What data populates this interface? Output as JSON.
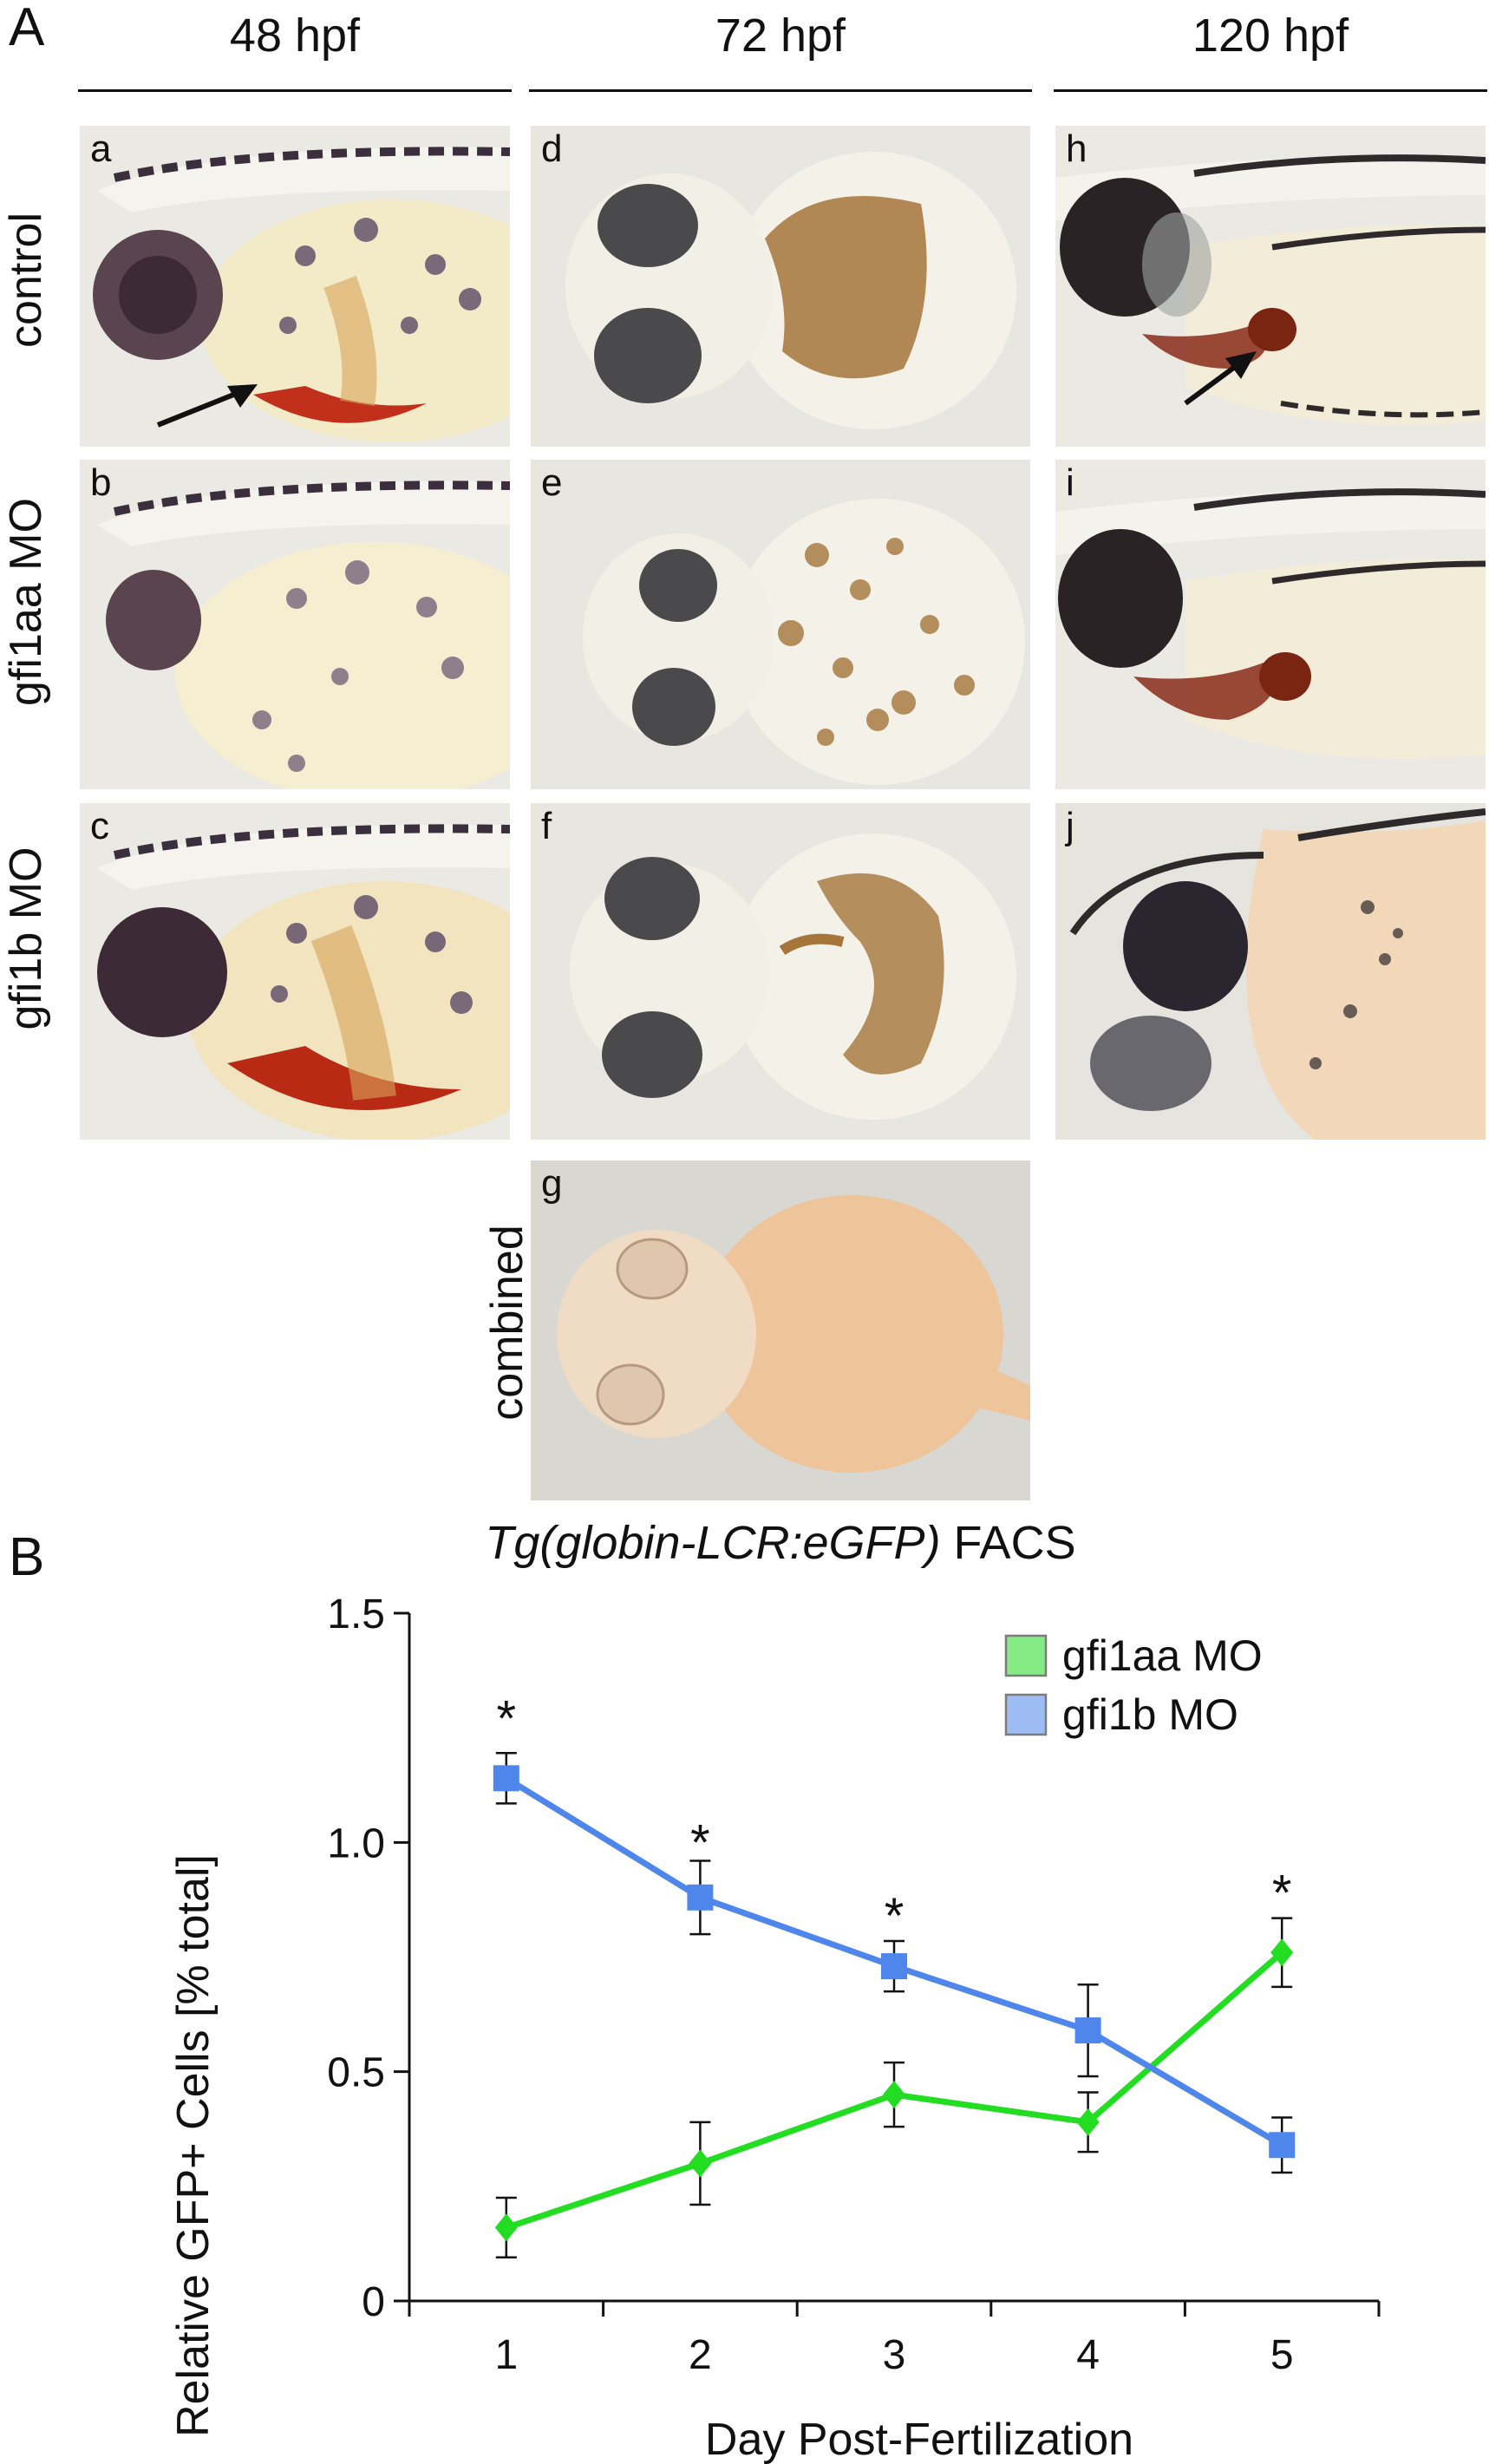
{
  "panel_a": {
    "letter": "A",
    "columns": [
      "48 hpf",
      "72 hpf",
      "120 hpf"
    ],
    "rows": [
      "control",
      "gfi1aa MO",
      "gfi1b MO",
      "combined"
    ],
    "subpanels": [
      "a",
      "b",
      "c",
      "d",
      "e",
      "f",
      "g",
      "h",
      "i",
      "j"
    ]
  },
  "panel_b": {
    "letter": "B"
  },
  "chart_data": {
    "type": "line",
    "title_italic": "Tg(globin-LCR:eGFP)",
    "title_rest": " FACS",
    "xlabel": "Day Post-Fertilization",
    "ylabel": "Relative GFP+ Cells [% total]",
    "x": [
      1,
      2,
      3,
      4,
      5
    ],
    "xticklabels": [
      "1",
      "2",
      "3",
      "4",
      "5"
    ],
    "ylim": [
      0,
      1.5
    ],
    "yticks": [
      0,
      0.5,
      1.0,
      1.5
    ],
    "yticklabels": [
      "0",
      "0.5",
      "1.0",
      "1.5"
    ],
    "legend_position": "top-right",
    "series": [
      {
        "name": "gfi1aa MO",
        "color": "#22dd22",
        "marker": "diamond",
        "values": [
          0.16,
          0.3,
          0.45,
          0.39,
          0.76
        ],
        "errors": [
          0.065,
          0.09,
          0.07,
          0.065,
          0.075
        ]
      },
      {
        "name": "gfi1b MO",
        "color": "#4f86ec",
        "marker": "square",
        "values": [
          1.14,
          0.88,
          0.73,
          0.59,
          0.34
        ],
        "errors": [
          0.055,
          0.08,
          0.055,
          0.1,
          0.06
        ]
      }
    ],
    "significance": [
      {
        "x": 1,
        "y": 1.27,
        "label": "*"
      },
      {
        "x": 2,
        "y": 1.0,
        "label": "*"
      },
      {
        "x": 3,
        "y": 0.84,
        "label": "*"
      },
      {
        "x": 5,
        "y": 0.89,
        "label": "*"
      }
    ]
  },
  "colors": {
    "background": "#ffffff",
    "text": "#111111",
    "green_series": "#22dd22",
    "blue_series": "#4f86ec",
    "hemoglobin_stain": "#c0301a",
    "benzidine_stain": "#a5753a"
  }
}
